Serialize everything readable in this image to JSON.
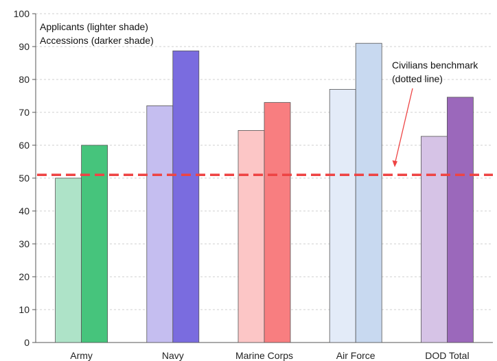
{
  "chart_data": {
    "type": "bar",
    "categories": [
      "Army",
      "Navy",
      "Marine Corps",
      "Air Force",
      "DOD Total"
    ],
    "series": [
      {
        "name": "Applicants (lighter shade)",
        "values": [
          50,
          72,
          64.5,
          77,
          62.7
        ]
      },
      {
        "name": "Accessions (darker shade)",
        "values": [
          60,
          88.7,
          73,
          91,
          74.6
        ]
      }
    ],
    "legend_lines": [
      "Applicants (lighter shade)",
      "Accessions (darker shade)"
    ],
    "legend_position": "top-left",
    "benchmark": {
      "value": 51,
      "lines": [
        "Civilians benchmark",
        "(dotted line)"
      ],
      "color": "#ee4444"
    },
    "ylim": [
      0,
      100
    ],
    "yticks": [
      0,
      10,
      20,
      30,
      40,
      50,
      60,
      70,
      80,
      90,
      100
    ],
    "grid": true,
    "colors": {
      "applicants": [
        "#aee3c8",
        "#c5bef0",
        "#fcc6c6",
        "#e3ebf8",
        "#d6c3e6"
      ],
      "accessions": [
        "#46c47c",
        "#7a6cdf",
        "#f87e80",
        "#c8d9f0",
        "#9b68bb"
      ],
      "grid": "#cfcfcf",
      "axis": "#555555"
    }
  }
}
